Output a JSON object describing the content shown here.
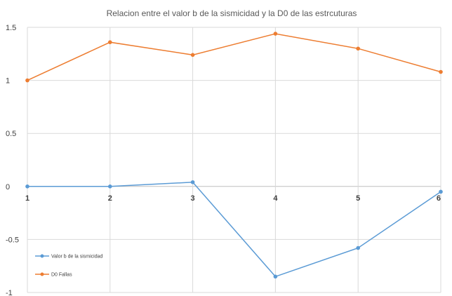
{
  "chart_data": {
    "type": "line",
    "title": "Relacion entre el valor b de la sismicidad y la D0 de las estrcuturas",
    "xlabel": "",
    "ylabel": "",
    "x": [
      1,
      2,
      3,
      4,
      5,
      6
    ],
    "ylim": [
      -1,
      1.5
    ],
    "yticks": [
      -1,
      -0.5,
      0,
      0.5,
      1,
      1.5
    ],
    "ytick_labels": [
      "-1",
      "-0.5",
      "0",
      "0.5",
      "1",
      "1.5"
    ],
    "xtick_labels": [
      "1",
      "2",
      "3",
      "4",
      "5",
      "6"
    ],
    "grid": true,
    "legend_position": "bottom-left",
    "series": [
      {
        "name": "Valor b de la sismicidad",
        "color": "#5B9BD5",
        "values": [
          0.0,
          0.0,
          0.04,
          -0.85,
          -0.58,
          -0.05
        ]
      },
      {
        "name": "D0 Fallas",
        "color": "#ED7D31",
        "values": [
          1.0,
          1.36,
          1.24,
          1.44,
          1.3,
          1.08
        ]
      }
    ]
  }
}
